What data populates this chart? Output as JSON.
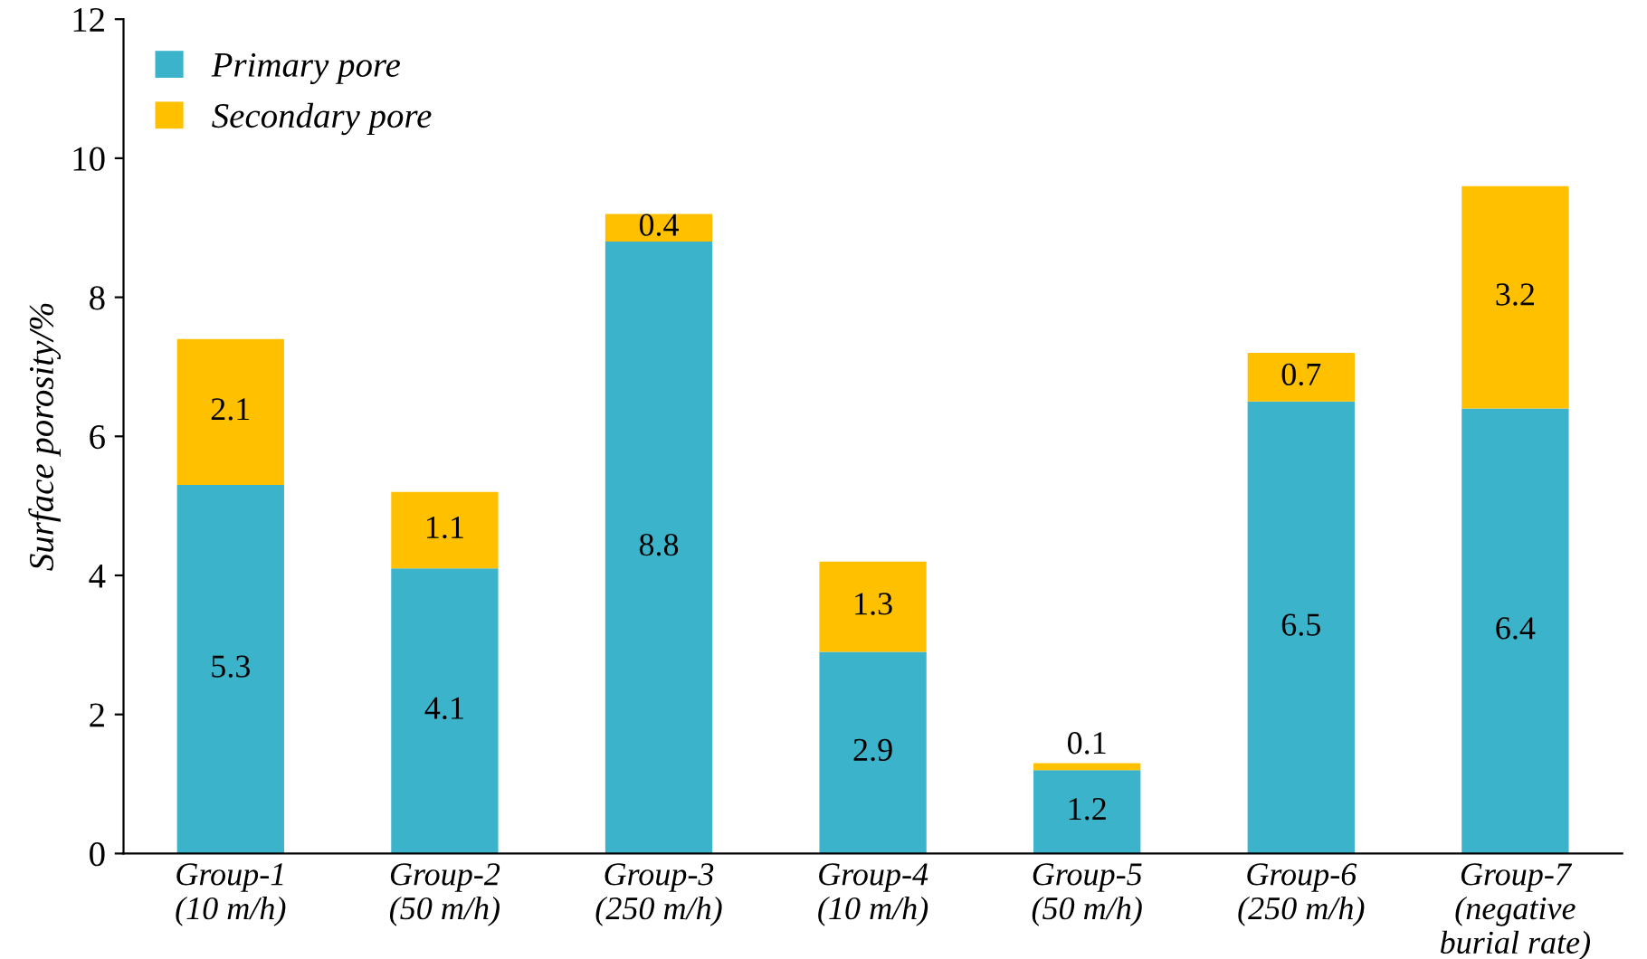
{
  "chart_data": {
    "type": "bar",
    "stacked": true,
    "ylabel": "Surface porosity/%",
    "categories": [
      "Group-1\n(10 m/h)",
      "Group-2\n(50 m/h)",
      "Group-3\n(250 m/h)",
      "Group-4\n(10 m/h)",
      "Group-5\n(50 m/h)",
      "Group-6\n(250 m/h)",
      "Group-7\n(negative\nburial rate)"
    ],
    "series": [
      {
        "name": "Primary pore",
        "color": "#3bb3cb",
        "values": [
          5.3,
          4.1,
          8.8,
          2.9,
          1.2,
          6.5,
          6.4
        ]
      },
      {
        "name": "Secondary pore",
        "color": "#ffc000",
        "values": [
          2.1,
          1.1,
          0.4,
          1.3,
          0.1,
          0.7,
          3.2
        ]
      }
    ],
    "ylim": [
      0,
      12
    ],
    "yticks": [
      0,
      2,
      4,
      6,
      8,
      10,
      12
    ],
    "data_labels": true,
    "legend": "top left",
    "grid": false
  }
}
